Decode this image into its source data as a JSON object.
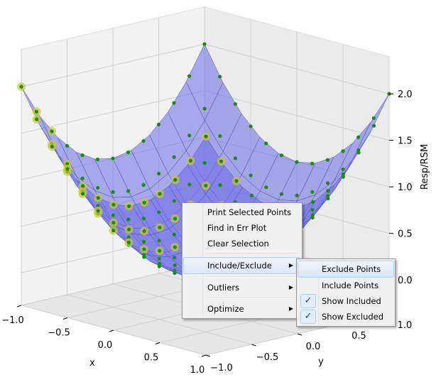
{
  "chart_data": {
    "type": "surface",
    "xlabel": "x",
    "ylabel": "y",
    "zlabel": "Resp/RSM",
    "x_ticks": [
      "−1.0",
      "−0.5",
      "0.0",
      "0.5",
      "1.0"
    ],
    "y_ticks": [
      "−1.0",
      "−0.5",
      "0.0",
      "0.5",
      "1.0"
    ],
    "z_ticks": [
      "0.0",
      "0.5",
      "1.0",
      "1.5",
      "2.0"
    ],
    "xlim": [
      -1,
      1
    ],
    "ylim": [
      -1,
      1
    ],
    "zlim": [
      -0.35,
      2.4
    ],
    "surface_color": "#6a6ae8",
    "point_color": "#1a8a1a",
    "excluded_halo_color": "#c8c832"
  },
  "menu": {
    "items": [
      "Print Selected Points",
      "Find in Err Plot",
      "Clear Selection",
      "Include/Exclude",
      "Outliers",
      "Optimize"
    ],
    "submenu": [
      "Exclude Points",
      "Include Points",
      "Show Included",
      "Show Excluded"
    ],
    "check": "✓",
    "arrow": "▶"
  }
}
